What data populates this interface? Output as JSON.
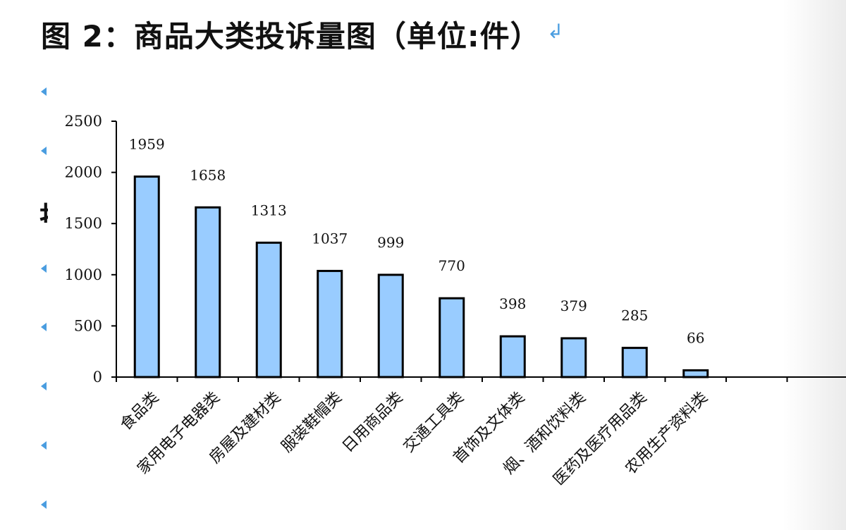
{
  "header": {
    "title": "图 2：商品大类投诉量图（单位:件）",
    "return_mark": "↲"
  },
  "chart_data": {
    "type": "bar",
    "categories": [
      "食品类",
      "家用电子电器类",
      "房屋及建材类",
      "服装鞋帽类",
      "日用商品类",
      "交通工具类",
      "首饰及文体类",
      "烟、酒和饮料类",
      "医药及医疗用品类",
      "农用生产资料类"
    ],
    "values": [
      1959,
      1658,
      1313,
      1037,
      999,
      770,
      398,
      379,
      285,
      66
    ],
    "data_labels": [
      "1959",
      "1658",
      "1313",
      "1037",
      "999",
      "770",
      "398",
      "379",
      "285",
      "66"
    ],
    "yticks": [
      "0",
      "500",
      "1000",
      "1500",
      "2000",
      "2500"
    ],
    "ylim": [
      0,
      2500
    ],
    "title": "图 2：商品大类投诉量图（单位:件）",
    "xlabel": "",
    "ylabel": "",
    "grid": false,
    "bar_color": "#99ccff",
    "bar_edge_color": "#000000"
  }
}
